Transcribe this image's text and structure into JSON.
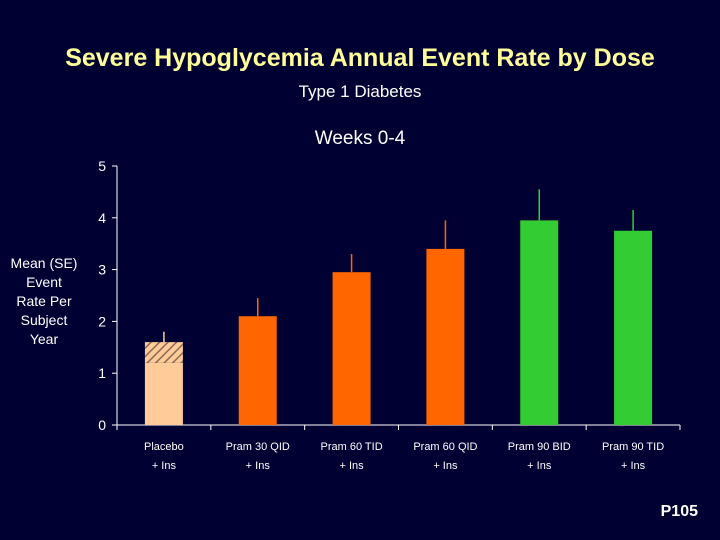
{
  "title": "Severe Hypoglycemia Annual Event Rate by Dose",
  "subtitle": "Type 1 Diabetes",
  "reference_code": "P105",
  "chart_data": {
    "type": "bar",
    "title": "Weeks 0-4",
    "ylabel": "Mean (SE)\nEvent\nRate Per\nSubject\nYear",
    "xlabel": "",
    "ylim": [
      0,
      5
    ],
    "yticks": [
      0,
      1,
      2,
      3,
      4,
      5
    ],
    "grid": false,
    "categories": [
      [
        "Placebo",
        "+ Ins"
      ],
      [
        "Pram 30 QID",
        "+ Ins"
      ],
      [
        "Pram 60 TID",
        "+ Ins"
      ],
      [
        "Pram 60 QID",
        "+ Ins"
      ],
      [
        "Pram 90 BID",
        "+ Ins"
      ],
      [
        "Pram 90 TID",
        "+ Ins"
      ]
    ],
    "values": [
      1.6,
      2.1,
      2.95,
      3.4,
      3.95,
      3.75
    ],
    "errors": [
      0.2,
      0.35,
      0.35,
      0.55,
      0.6,
      0.4
    ],
    "hatched_lower_bound": [
      1.2,
      null,
      null,
      null,
      null,
      null
    ],
    "colors": [
      "#FFCC99",
      "#FF6600",
      "#FF6600",
      "#FF6600",
      "#33CC33",
      "#33CC33"
    ],
    "error_bar_colors": [
      "#FFCC99",
      "#FF6600",
      "#FF6600",
      "#FF6600",
      "#33CC33",
      "#33CC33"
    ],
    "axis_color": "#FFFFFF",
    "text_color": "#FFFFFF"
  }
}
